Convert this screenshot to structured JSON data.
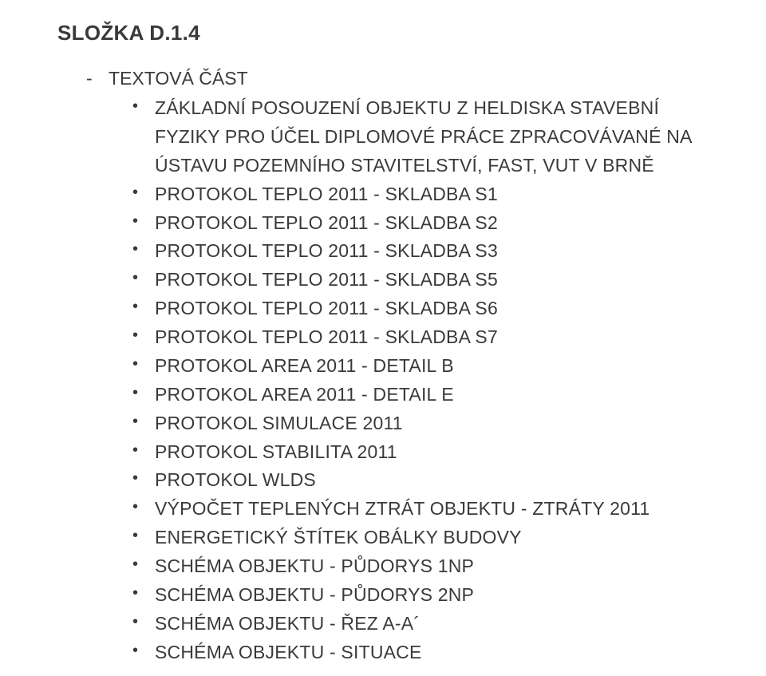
{
  "colors": {
    "background": "#ffffff",
    "text": "#3a3a3a"
  },
  "typography": {
    "family": "Arial",
    "heading_size_pt": 19,
    "body_size_pt": 17,
    "heading_weight": "bold",
    "line_height": 1.56
  },
  "heading": "SLOŽKA D.1.4",
  "subheading": {
    "dash": "-",
    "text": "TEXTOVÁ ČÁST"
  },
  "bullets": [
    "ZÁKLADNÍ POSOUZENÍ OBJEKTU Z HELDISKA STAVEBNÍ FYZIKY PRO ÚČEL DIPLOMOVÉ PRÁCE ZPRACOVÁVANÉ NA ÚSTAVU POZEMNÍHO STAVITELSTVÍ, FAST, VUT V BRNĚ",
    "PROTOKOL TEPLO 2011 - SKLADBA S1",
    "PROTOKOL TEPLO 2011 - SKLADBA S2",
    "PROTOKOL TEPLO 2011 - SKLADBA S3",
    "PROTOKOL TEPLO 2011 - SKLADBA S5",
    "PROTOKOL TEPLO 2011 - SKLADBA S6",
    "PROTOKOL TEPLO 2011 - SKLADBA S7",
    "PROTOKOL AREA 2011 - DETAIL B",
    "PROTOKOL AREA 2011 - DETAIL E",
    "PROTOKOL SIMULACE 2011",
    "PROTOKOL STABILITA 2011",
    "PROTOKOL WLDS",
    "VÝPOČET TEPLENÝCH ZTRÁT OBJEKTU - ZTRÁTY 2011",
    "ENERGETICKÝ ŠTÍTEK OBÁLKY BUDOVY",
    "SCHÉMA OBJEKTU - PŮDORYS 1NP",
    "SCHÉMA OBJEKTU - PŮDORYS 2NP",
    "SCHÉMA OBJEKTU - ŘEZ A-A´",
    "SCHÉMA OBJEKTU - SITUACE"
  ]
}
